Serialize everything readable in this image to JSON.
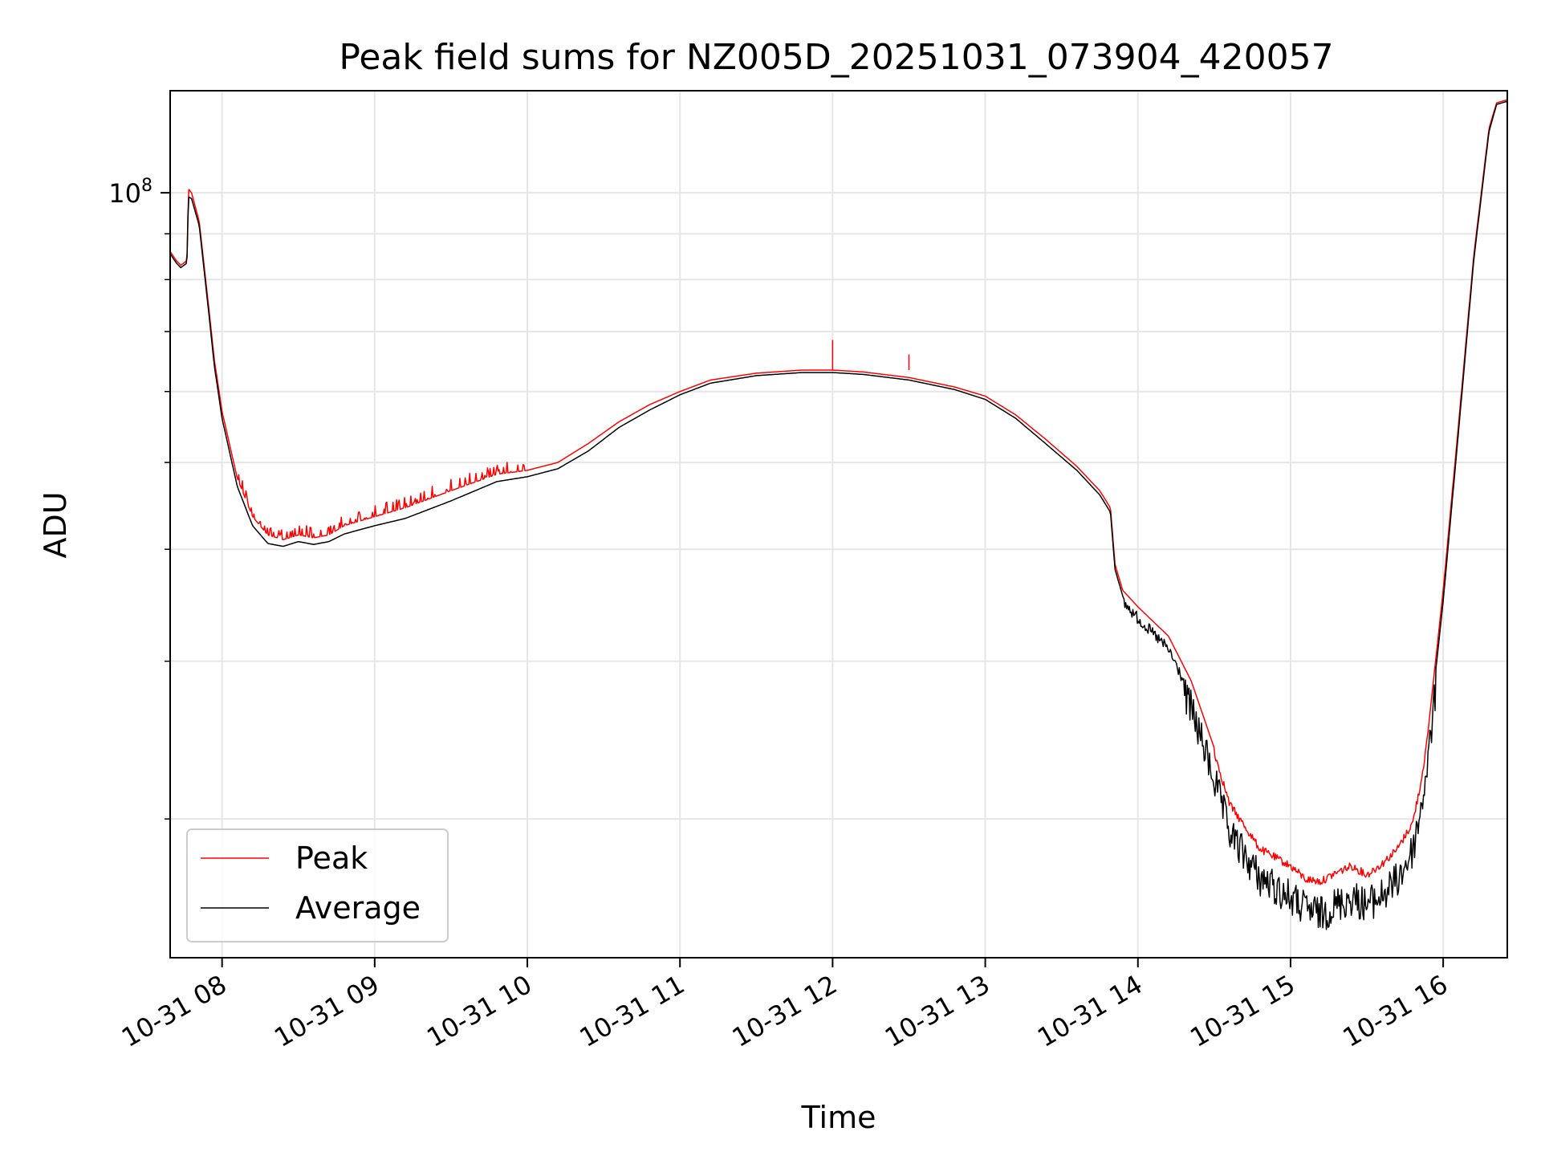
{
  "chart_data": {
    "type": "line",
    "title": "Peak field sums for NZ005D_20251031_073904_420057",
    "xlabel": "Time",
    "ylabel": "ADU",
    "yscale": "log",
    "ylim": [
      14000000,
      130000000
    ],
    "y_major_ticks": [
      {
        "value": 100000000,
        "base": "10",
        "exp": "8"
      }
    ],
    "y_minor_ticks": [
      20000000,
      30000000,
      40000000,
      50000000,
      60000000,
      70000000,
      80000000,
      90000000
    ],
    "xlim_hours": [
      7.66,
      16.42
    ],
    "x_ticks": [
      {
        "value": 8,
        "label": "10-31 08"
      },
      {
        "value": 9,
        "label": "10-31 09"
      },
      {
        "value": 10,
        "label": "10-31 10"
      },
      {
        "value": 11,
        "label": "10-31 11"
      },
      {
        "value": 12,
        "label": "10-31 12"
      },
      {
        "value": 13,
        "label": "10-31 13"
      },
      {
        "value": 14,
        "label": "10-31 14"
      },
      {
        "value": 15,
        "label": "10-31 15"
      },
      {
        "value": 16,
        "label": "10-31 16"
      }
    ],
    "grid": true,
    "legend_position": "lower-left",
    "colors": {
      "peak": "#ff0000",
      "average": "#000000",
      "grid": "#e6e6e6",
      "axes": "#000000"
    },
    "series": [
      {
        "name": "Peak",
        "color": "#ff0000",
        "x": [
          7.66,
          7.7,
          7.73,
          7.77,
          7.78,
          7.8,
          7.85,
          7.9,
          7.95,
          8.0,
          8.1,
          8.2,
          8.3,
          8.4,
          8.5,
          8.6,
          8.7,
          8.8,
          9.0,
          9.2,
          9.5,
          9.8,
          10.0,
          10.2,
          10.4,
          10.6,
          10.8,
          11.0,
          11.2,
          11.5,
          11.8,
          12.0,
          12.2,
          12.5,
          12.8,
          13.0,
          13.2,
          13.4,
          13.6,
          13.75,
          13.82,
          13.85,
          13.9,
          14.0,
          14.2,
          14.35,
          14.5,
          14.6,
          14.8,
          15.0,
          15.1,
          15.2,
          15.3,
          15.4,
          15.5,
          15.6,
          15.7,
          15.8,
          15.85,
          15.9,
          16.0,
          16.1,
          16.2,
          16.3,
          16.35,
          16.42
        ],
        "y": [
          86000000,
          84000000,
          83000000,
          84000000,
          101000000,
          100000000,
          93000000,
          78000000,
          65000000,
          57000000,
          48000000,
          43500000,
          41500000,
          41000000,
          41500000,
          41200000,
          41500000,
          42500000,
          43500000,
          44500000,
          46500000,
          48500000,
          49000000,
          50000000,
          52500000,
          55500000,
          58000000,
          60000000,
          61800000,
          62900000,
          63400000,
          63400000,
          63100000,
          62200000,
          60700000,
          59300000,
          56500000,
          53000000,
          49500000,
          46500000,
          44500000,
          38500000,
          36000000,
          34500000,
          32000000,
          28500000,
          24000000,
          21000000,
          18700000,
          17900000,
          17300000,
          17200000,
          17600000,
          17900000,
          17500000,
          18000000,
          18700000,
          20000000,
          22000000,
          25000000,
          36000000,
          55000000,
          85000000,
          118000000,
          126000000,
          127000000
        ]
      },
      {
        "name": "Average",
        "color": "#000000",
        "x": [
          7.66,
          7.7,
          7.73,
          7.77,
          7.78,
          7.8,
          7.85,
          7.9,
          7.95,
          8.0,
          8.1,
          8.2,
          8.3,
          8.4,
          8.5,
          8.6,
          8.7,
          8.8,
          9.0,
          9.2,
          9.5,
          9.8,
          10.0,
          10.2,
          10.4,
          10.6,
          10.8,
          11.0,
          11.2,
          11.5,
          11.8,
          12.0,
          12.2,
          12.5,
          12.8,
          13.0,
          13.2,
          13.4,
          13.6,
          13.75,
          13.82,
          13.85,
          13.9,
          14.0,
          14.2,
          14.35,
          14.5,
          14.6,
          14.8,
          15.0,
          15.1,
          15.2,
          15.3,
          15.4,
          15.5,
          15.6,
          15.7,
          15.8,
          15.85,
          15.9,
          16.0,
          16.1,
          16.2,
          16.3,
          16.35,
          16.42
        ],
        "y": [
          85500000,
          83500000,
          82500000,
          83500000,
          99000000,
          98500000,
          92000000,
          77000000,
          64000000,
          56000000,
          47000000,
          42500000,
          40600000,
          40300000,
          40800000,
          40500000,
          40800000,
          41600000,
          42500000,
          43300000,
          45300000,
          47600000,
          48200000,
          49200000,
          51500000,
          54700000,
          57200000,
          59500000,
          61300000,
          62500000,
          63000000,
          63000000,
          62700000,
          61800000,
          60300000,
          58800000,
          56000000,
          52400000,
          49000000,
          46000000,
          44000000,
          38000000,
          35500000,
          34000000,
          31400000,
          27800000,
          23200000,
          20200000,
          18000000,
          17100000,
          16600000,
          16400000,
          16800000,
          17100000,
          16800000,
          17200000,
          17900000,
          19300000,
          21300000,
          24300000,
          35000000,
          54000000,
          84000000,
          117000000,
          125500000,
          126500000
        ]
      }
    ]
  }
}
